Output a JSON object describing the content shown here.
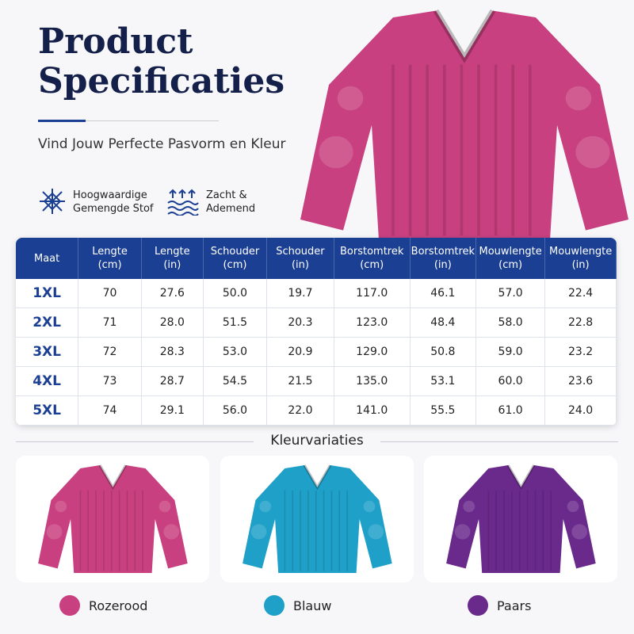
{
  "header": {
    "title_lines": [
      "Product",
      "Specificaties"
    ],
    "subtitle": "Vind Jouw Perfecte Pasvorm en Kleur",
    "hero_color": "#c8407f"
  },
  "features": [
    {
      "lines": [
        "Hoogwaardige",
        "Gemengde Stof"
      ]
    },
    {
      "lines": [
        "Zacht &",
        "Ademend"
      ]
    }
  ],
  "table": {
    "headers": [
      [
        "Maat"
      ],
      [
        "Lengte",
        "(cm)"
      ],
      [
        "Lengte",
        "(in)"
      ],
      [
        "Schouder",
        "(cm)"
      ],
      [
        "Schouder",
        "(in)"
      ],
      [
        "Borstomtrek",
        "(cm)"
      ],
      [
        "Borstomtrek",
        "(in)"
      ],
      [
        "Mouwlengte",
        "(cm)"
      ],
      [
        "Mouwlengte",
        "(in)"
      ]
    ],
    "rows": [
      [
        "1XL",
        "70",
        "27.6",
        "50.0",
        "19.7",
        "117.0",
        "46.1",
        "57.0",
        "22.4"
      ],
      [
        "2XL",
        "71",
        "28.0",
        "51.5",
        "20.3",
        "123.0",
        "48.4",
        "58.0",
        "22.8"
      ],
      [
        "3XL",
        "72",
        "28.3",
        "53.0",
        "20.9",
        "129.0",
        "50.8",
        "59.0",
        "23.2"
      ],
      [
        "4XL",
        "73",
        "28.7",
        "54.5",
        "21.5",
        "135.0",
        "53.1",
        "60.0",
        "23.6"
      ],
      [
        "5XL",
        "74",
        "29.1",
        "56.0",
        "22.0",
        "141.0",
        "55.5",
        "61.0",
        "24.0"
      ]
    ]
  },
  "colors": {
    "title": "Kleurvariaties",
    "variants": [
      {
        "name": "Rozerood",
        "color": "#c8407f"
      },
      {
        "name": "Blauw",
        "color": "#1fa0c8"
      },
      {
        "name": "Paars",
        "color": "#6a2a8c"
      }
    ]
  }
}
